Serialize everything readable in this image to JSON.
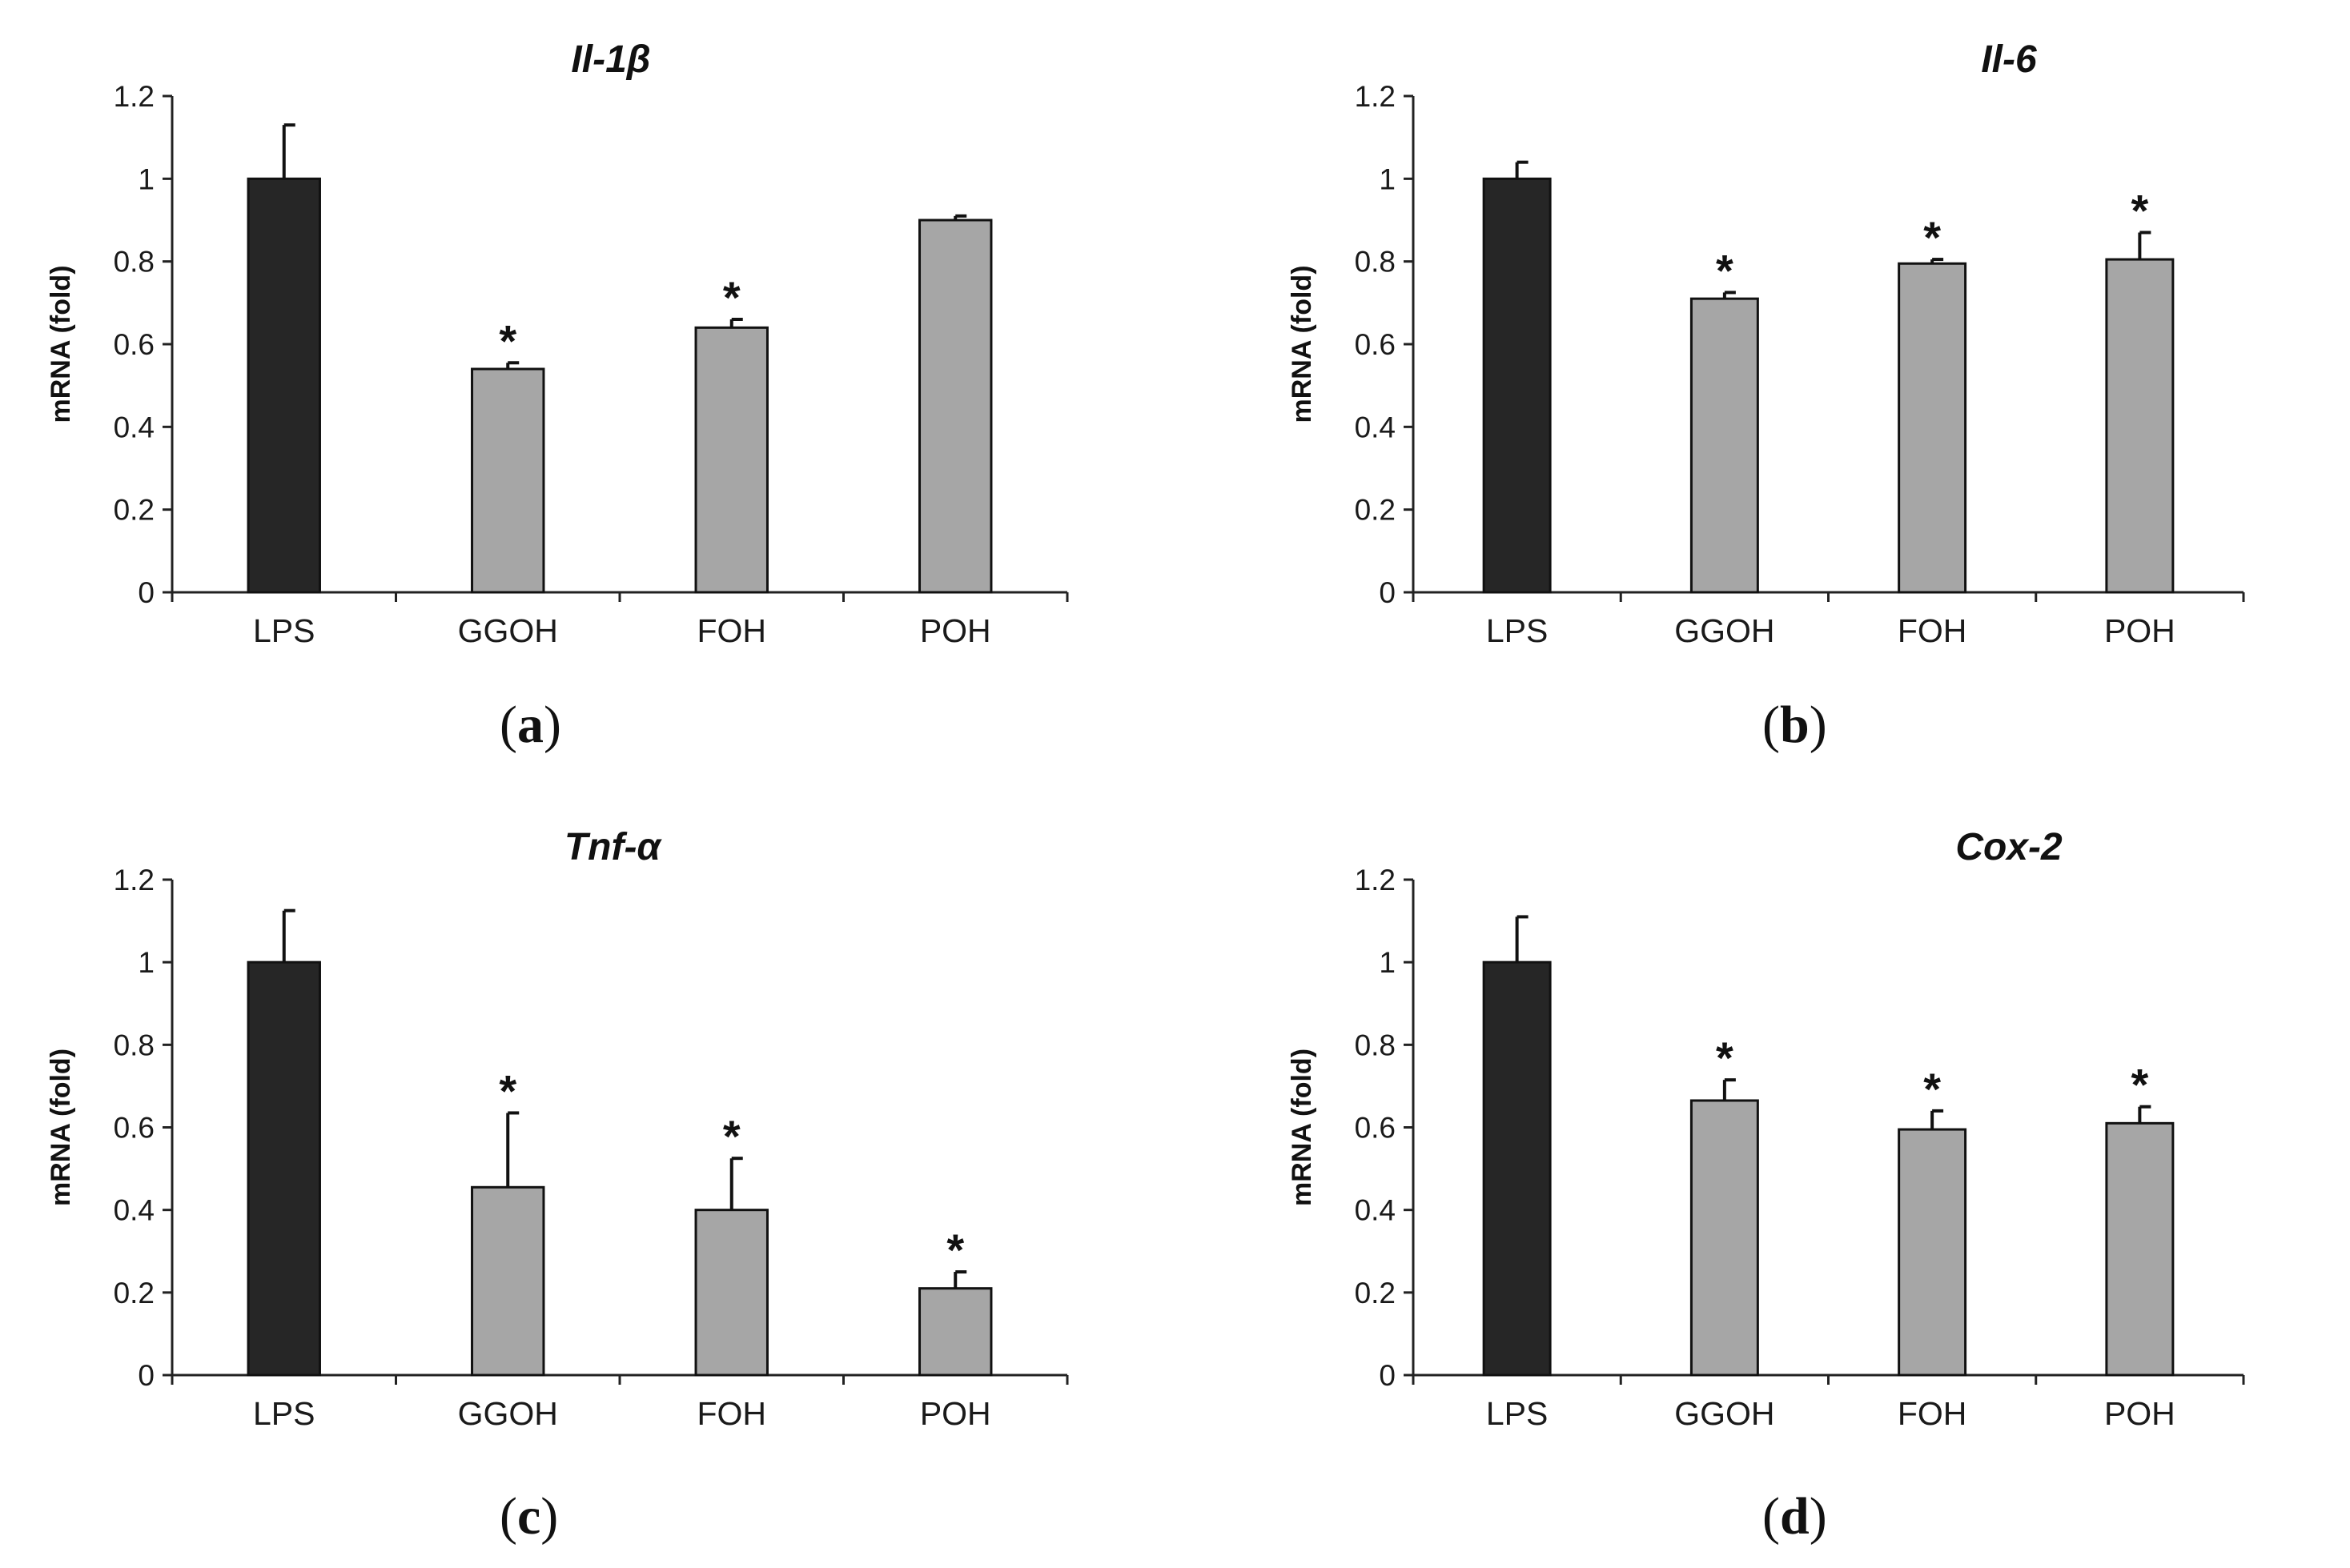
{
  "chart_data": [
    {
      "type": "bar",
      "panel": "a",
      "title": "Il-1β",
      "ylabel": "mRNA (fold)",
      "xlabel": "",
      "ylim": [
        0,
        1.2
      ],
      "yticks": [
        "0",
        "0.2",
        "0.4",
        "0.6",
        "0.8",
        "1",
        "1.2"
      ],
      "categories": [
        "LPS",
        "GGOH",
        "FOH",
        "POH"
      ],
      "values": [
        1.0,
        0.54,
        0.64,
        0.9
      ],
      "errors": [
        0.13,
        0.015,
        0.02,
        0.01
      ],
      "significant": [
        false,
        true,
        true,
        false
      ],
      "significance_marker": "*",
      "colors": [
        "#262626",
        "#a6a6a6",
        "#a6a6a6",
        "#a6a6a6"
      ]
    },
    {
      "type": "bar",
      "panel": "b",
      "title": "Il-6",
      "ylabel": "mRNA (fold)",
      "xlabel": "",
      "ylim": [
        0,
        1.2
      ],
      "yticks": [
        "0",
        "0.2",
        "0.4",
        "0.6",
        "0.8",
        "1",
        "1.2"
      ],
      "categories": [
        "LPS",
        "GGOH",
        "FOH",
        "POH"
      ],
      "values": [
        1.0,
        0.71,
        0.795,
        0.805
      ],
      "errors": [
        0.04,
        0.015,
        0.01,
        0.065
      ],
      "significant": [
        false,
        true,
        true,
        true
      ],
      "significance_marker": "*",
      "colors": [
        "#262626",
        "#a6a6a6",
        "#a6a6a6",
        "#a6a6a6"
      ]
    },
    {
      "type": "bar",
      "panel": "c",
      "title": "Tnf-α",
      "ylabel": "mRNA (fold)",
      "xlabel": "",
      "ylim": [
        0,
        1.2
      ],
      "yticks": [
        "0",
        "0.2",
        "0.4",
        "0.6",
        "0.8",
        "1",
        "1.2"
      ],
      "categories": [
        "LPS",
        "GGOH",
        "FOH",
        "POH"
      ],
      "values": [
        1.0,
        0.455,
        0.4,
        0.21
      ],
      "errors": [
        0.125,
        0.18,
        0.125,
        0.04
      ],
      "significant": [
        false,
        true,
        true,
        true
      ],
      "significance_marker": "*",
      "colors": [
        "#262626",
        "#a6a6a6",
        "#a6a6a6",
        "#a6a6a6"
      ]
    },
    {
      "type": "bar",
      "panel": "d",
      "title": "Cox-2",
      "ylabel": "mRNA (fold)",
      "xlabel": "",
      "ylim": [
        0,
        1.2
      ],
      "yticks": [
        "0",
        "0.2",
        "0.4",
        "0.6",
        "0.8",
        "1",
        "1.2"
      ],
      "categories": [
        "LPS",
        "GGOH",
        "FOH",
        "POH"
      ],
      "values": [
        1.0,
        0.665,
        0.595,
        0.61
      ],
      "errors": [
        0.11,
        0.05,
        0.045,
        0.04
      ],
      "significant": [
        false,
        true,
        true,
        true
      ],
      "significance_marker": "*",
      "colors": [
        "#262626",
        "#a6a6a6",
        "#a6a6a6",
        "#a6a6a6"
      ]
    }
  ],
  "panels": {
    "a": {
      "letter": "a"
    },
    "b": {
      "letter": "b"
    },
    "c": {
      "letter": "c"
    },
    "d": {
      "letter": "d"
    }
  }
}
